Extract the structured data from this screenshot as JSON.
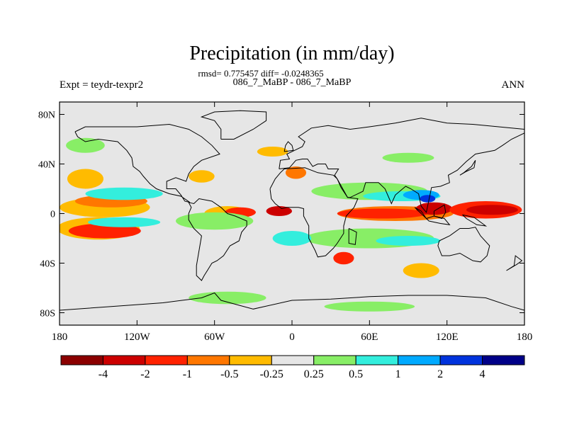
{
  "chart_data": {
    "type": "heatmap",
    "title": "Precipitation (in mm/day)",
    "stats_line": "rmsd= 0.775457 diff= -0.0248365",
    "subtitle": "086_7_MaBP - 086_7_MaBP",
    "left_label": "Expt = teydr-texpr2",
    "right_label": "ANN",
    "x_ticks": [
      "180",
      "120W",
      "60W",
      "0",
      "60E",
      "120E",
      "180"
    ],
    "x_tick_values": [
      -180,
      -120,
      -60,
      0,
      60,
      120,
      180
    ],
    "y_ticks": [
      "80N",
      "40N",
      "0",
      "40S",
      "80S"
    ],
    "y_tick_values": [
      80,
      40,
      0,
      -40,
      -80
    ],
    "xlim": [
      -180,
      180
    ],
    "ylim": [
      -90,
      90
    ],
    "colorbar": {
      "labels": [
        "-4",
        "-2",
        "-1",
        "-0.5",
        "-0.25",
        "0.25",
        "0.5",
        "1",
        "2",
        "4"
      ],
      "colors": [
        "#8b0000",
        "#cc0000",
        "#ff2200",
        "#ff7700",
        "#ffbb00",
        "#e6e6e6",
        "#88ee66",
        "#33eedd",
        "#00aaff",
        "#0033dd",
        "#000088"
      ]
    },
    "anomaly_patches": [
      {
        "lon": -145,
        "lat": 5,
        "rlon": 35,
        "rlat": 8,
        "level": "#ffbb00"
      },
      {
        "lon": -140,
        "lat": 10,
        "rlon": 28,
        "rlat": 5,
        "level": "#ff7700"
      },
      {
        "lon": -150,
        "lat": -12,
        "rlon": 32,
        "rlat": 9,
        "level": "#ffbb00"
      },
      {
        "lon": -145,
        "lat": -14,
        "rlon": 28,
        "rlat": 6,
        "level": "#ff2200"
      },
      {
        "lon": -50,
        "lat": 0,
        "rlon": 18,
        "rlat": 6,
        "level": "#ffbb00"
      },
      {
        "lon": -40,
        "lat": 1,
        "rlon": 12,
        "rlat": 4,
        "level": "#ff2200"
      },
      {
        "lon": -10,
        "lat": 2,
        "rlon": 10,
        "rlat": 4,
        "level": "#cc0000"
      },
      {
        "lon": 80,
        "lat": 0,
        "rlon": 45,
        "rlat": 6,
        "level": "#ff7700"
      },
      {
        "lon": 70,
        "lat": 0,
        "rlon": 35,
        "rlat": 4,
        "level": "#ff2200"
      },
      {
        "lon": 110,
        "lat": 4,
        "rlon": 14,
        "rlat": 5,
        "level": "#cc0000"
      },
      {
        "lon": 150,
        "lat": 3,
        "rlon": 28,
        "rlat": 7,
        "level": "#ff2200"
      },
      {
        "lon": 155,
        "lat": 3,
        "rlon": 20,
        "rlat": 4,
        "level": "#cc0000"
      },
      {
        "lon": 3,
        "lat": 33,
        "rlon": 8,
        "rlat": 5,
        "level": "#ff7700"
      },
      {
        "lon": -15,
        "lat": 50,
        "rlon": 12,
        "rlat": 4,
        "level": "#ffbb00"
      },
      {
        "lon": 40,
        "lat": -36,
        "rlon": 8,
        "rlat": 5,
        "level": "#ff2200"
      },
      {
        "lon": 100,
        "lat": -46,
        "rlon": 14,
        "rlat": 6,
        "level": "#ffbb00"
      },
      {
        "lon": -160,
        "lat": 28,
        "rlon": 14,
        "rlat": 8,
        "level": "#ffbb00"
      },
      {
        "lon": -70,
        "lat": 30,
        "rlon": 10,
        "rlat": 5,
        "level": "#ffbb00"
      },
      {
        "lon": -130,
        "lat": 16,
        "rlon": 30,
        "rlat": 5,
        "level": "#33eedd"
      },
      {
        "lon": -130,
        "lat": -7,
        "rlon": 28,
        "rlat": 4,
        "level": "#33eedd"
      },
      {
        "lon": -60,
        "lat": -6,
        "rlon": 30,
        "rlat": 7,
        "level": "#88ee66"
      },
      {
        "lon": 60,
        "lat": 18,
        "rlon": 45,
        "rlat": 7,
        "level": "#88ee66"
      },
      {
        "lon": 85,
        "lat": 14,
        "rlon": 30,
        "rlat": 4,
        "level": "#33eedd"
      },
      {
        "lon": 100,
        "lat": 15,
        "rlon": 14,
        "rlat": 4,
        "level": "#00aaff"
      },
      {
        "lon": 105,
        "lat": 12,
        "rlon": 6,
        "rlat": 3,
        "level": "#0033dd"
      },
      {
        "lon": 60,
        "lat": -20,
        "rlon": 50,
        "rlat": 8,
        "level": "#88ee66"
      },
      {
        "lon": 90,
        "lat": -22,
        "rlon": 25,
        "rlat": 4,
        "level": "#33eedd"
      },
      {
        "lon": -160,
        "lat": 55,
        "rlon": 15,
        "rlat": 6,
        "level": "#88ee66"
      },
      {
        "lon": 90,
        "lat": 45,
        "rlon": 20,
        "rlat": 4,
        "level": "#88ee66"
      },
      {
        "lon": -50,
        "lat": -68,
        "rlon": 30,
        "rlat": 5,
        "level": "#88ee66"
      },
      {
        "lon": 60,
        "lat": -75,
        "rlon": 35,
        "rlat": 4,
        "level": "#88ee66"
      },
      {
        "lon": 0,
        "lat": -20,
        "rlon": 15,
        "rlat": 6,
        "level": "#33eedd"
      }
    ],
    "coastlines": [
      [
        [
          -168,
          66
        ],
        [
          -160,
          70
        ],
        [
          -140,
          70
        ],
        [
          -120,
          70
        ],
        [
          -95,
          72
        ],
        [
          -80,
          68
        ],
        [
          -70,
          62
        ],
        [
          -62,
          55
        ],
        [
          -56,
          48
        ],
        [
          -70,
          43
        ],
        [
          -76,
          38
        ],
        [
          -80,
          32
        ],
        [
          -82,
          26
        ],
        [
          -90,
          29
        ],
        [
          -97,
          26
        ],
        [
          -97,
          20
        ],
        [
          -90,
          20
        ],
        [
          -86,
          15
        ],
        [
          -83,
          10
        ],
        [
          -79,
          9
        ],
        [
          -86,
          14
        ],
        [
          -95,
          16
        ],
        [
          -105,
          20
        ],
        [
          -110,
          24
        ],
        [
          -115,
          30
        ],
        [
          -118,
          34
        ],
        [
          -123,
          38
        ],
        [
          -124,
          45
        ],
        [
          -128,
          51
        ],
        [
          -135,
          58
        ],
        [
          -150,
          60
        ],
        [
          -160,
          58
        ],
        [
          -166,
          62
        ],
        [
          -168,
          66
        ]
      ],
      [
        [
          -80,
          9
        ],
        [
          -76,
          8
        ],
        [
          -72,
          12
        ],
        [
          -62,
          10
        ],
        [
          -55,
          5
        ],
        [
          -50,
          0
        ],
        [
          -44,
          -2
        ],
        [
          -35,
          -6
        ],
        [
          -35,
          -10
        ],
        [
          -39,
          -15
        ],
        [
          -41,
          -22
        ],
        [
          -48,
          -26
        ],
        [
          -53,
          -34
        ],
        [
          -58,
          -38
        ],
        [
          -62,
          -40
        ],
        [
          -65,
          -45
        ],
        [
          -68,
          -50
        ],
        [
          -70,
          -54
        ],
        [
          -74,
          -50
        ],
        [
          -74,
          -42
        ],
        [
          -72,
          -30
        ],
        [
          -70,
          -18
        ],
        [
          -76,
          -12
        ],
        [
          -80,
          -5
        ],
        [
          -80,
          0
        ],
        [
          -78,
          5
        ],
        [
          -80,
          9
        ]
      ],
      [
        [
          -17,
          20
        ],
        [
          -13,
          28
        ],
        [
          -9,
          33
        ],
        [
          -6,
          36
        ],
        [
          10,
          37
        ],
        [
          20,
          33
        ],
        [
          32,
          31
        ],
        [
          35,
          28
        ],
        [
          43,
          13
        ],
        [
          51,
          12
        ],
        [
          48,
          5
        ],
        [
          42,
          -2
        ],
        [
          40,
          -10
        ],
        [
          40,
          -16
        ],
        [
          35,
          -24
        ],
        [
          32,
          -28
        ],
        [
          26,
          -34
        ],
        [
          20,
          -35
        ],
        [
          18,
          -30
        ],
        [
          13,
          -20
        ],
        [
          13,
          -10
        ],
        [
          9,
          -2
        ],
        [
          9,
          4
        ],
        [
          5,
          5
        ],
        [
          -4,
          5
        ],
        [
          -8,
          4
        ],
        [
          -13,
          8
        ],
        [
          -16,
          12
        ],
        [
          -17,
          20
        ]
      ],
      [
        [
          -10,
          36
        ],
        [
          -9,
          43
        ],
        [
          -2,
          44
        ],
        [
          -4,
          48
        ],
        [
          2,
          51
        ],
        [
          8,
          54
        ],
        [
          10,
          58
        ],
        [
          5,
          62
        ],
        [
          15,
          69
        ],
        [
          28,
          71
        ],
        [
          45,
          68
        ],
        [
          60,
          70
        ],
        [
          80,
          73
        ],
        [
          100,
          77
        ],
        [
          120,
          73
        ],
        [
          140,
          72
        ],
        [
          160,
          70
        ],
        [
          180,
          68
        ],
        [
          180,
          65
        ],
        [
          170,
          60
        ],
        [
          163,
          55
        ],
        [
          157,
          51
        ],
        [
          142,
          48
        ],
        [
          135,
          42
        ],
        [
          128,
          35
        ],
        [
          121,
          31
        ],
        [
          122,
          25
        ],
        [
          115,
          22
        ],
        [
          108,
          21
        ],
        [
          106,
          11
        ],
        [
          104,
          1
        ],
        [
          100,
          6
        ],
        [
          98,
          16
        ],
        [
          92,
          20
        ],
        [
          88,
          22
        ],
        [
          80,
          15
        ],
        [
          77,
          8
        ],
        [
          72,
          20
        ],
        [
          67,
          25
        ],
        [
          57,
          25
        ],
        [
          55,
          18
        ],
        [
          45,
          13
        ],
        [
          43,
          13
        ],
        [
          38,
          21
        ],
        [
          35,
          28
        ],
        [
          33,
          31
        ],
        [
          36,
          36
        ],
        [
          28,
          36
        ],
        [
          26,
          40
        ],
        [
          20,
          40
        ],
        [
          16,
          38
        ],
        [
          12,
          44
        ],
        [
          8,
          44
        ],
        [
          3,
          43
        ],
        [
          -2,
          37
        ],
        [
          -10,
          36
        ]
      ],
      [
        [
          114,
          -22
        ],
        [
          122,
          -18
        ],
        [
          130,
          -12
        ],
        [
          137,
          -12
        ],
        [
          142,
          -11
        ],
        [
          146,
          -18
        ],
        [
          153,
          -26
        ],
        [
          151,
          -34
        ],
        [
          146,
          -39
        ],
        [
          140,
          -38
        ],
        [
          135,
          -35
        ],
        [
          130,
          -32
        ],
        [
          122,
          -34
        ],
        [
          116,
          -34
        ],
        [
          113,
          -26
        ],
        [
          114,
          -22
        ]
      ],
      [
        [
          -55,
          60
        ],
        [
          -45,
          60
        ],
        [
          -30,
          68
        ],
        [
          -20,
          75
        ],
        [
          -20,
          82
        ],
        [
          -40,
          83
        ],
        [
          -60,
          82
        ],
        [
          -70,
          78
        ],
        [
          -60,
          75
        ],
        [
          -55,
          68
        ],
        [
          -55,
          60
        ]
      ],
      [
        [
          -180,
          -78
        ],
        [
          -140,
          -75
        ],
        [
          -100,
          -72
        ],
        [
          -70,
          -68
        ],
        [
          -60,
          -64
        ],
        [
          -55,
          -70
        ],
        [
          -30,
          -77
        ],
        [
          0,
          -70
        ],
        [
          30,
          -69
        ],
        [
          60,
          -67
        ],
        [
          90,
          -66
        ],
        [
          120,
          -66
        ],
        [
          150,
          -68
        ],
        [
          170,
          -75
        ],
        [
          180,
          -78
        ]
      ],
      [
        [
          95,
          5
        ],
        [
          100,
          0
        ],
        [
          106,
          -6
        ],
        [
          115,
          -8
        ],
        [
          122,
          -9
        ],
        [
          118,
          -4
        ],
        [
          110,
          -2
        ],
        [
          104,
          -4
        ],
        [
          100,
          2
        ],
        [
          95,
          5
        ]
      ],
      [
        [
          110,
          2
        ],
        [
          118,
          7
        ],
        [
          119,
          1
        ],
        [
          116,
          -4
        ],
        [
          110,
          -2
        ],
        [
          110,
          2
        ]
      ],
      [
        [
          132,
          -1
        ],
        [
          141,
          -3
        ],
        [
          150,
          -10
        ],
        [
          143,
          -9
        ],
        [
          135,
          -4
        ],
        [
          132,
          -1
        ]
      ],
      [
        [
          44,
          -12
        ],
        [
          50,
          -15
        ],
        [
          49,
          -25
        ],
        [
          44,
          -24
        ],
        [
          44,
          -12
        ]
      ],
      [
        [
          130,
          31
        ],
        [
          135,
          34
        ],
        [
          141,
          37
        ],
        [
          142,
          43
        ],
        [
          139,
          38
        ],
        [
          133,
          33
        ],
        [
          130,
          31
        ]
      ],
      [
        [
          166,
          -46
        ],
        [
          174,
          -41
        ],
        [
          178,
          -38
        ],
        [
          173,
          -34
        ],
        [
          172,
          -42
        ],
        [
          166,
          -46
        ]
      ],
      [
        [
          -6,
          50
        ],
        [
          1,
          51
        ],
        [
          0,
          55
        ],
        [
          -3,
          58
        ],
        [
          -5,
          55
        ],
        [
          -6,
          50
        ]
      ]
    ]
  }
}
